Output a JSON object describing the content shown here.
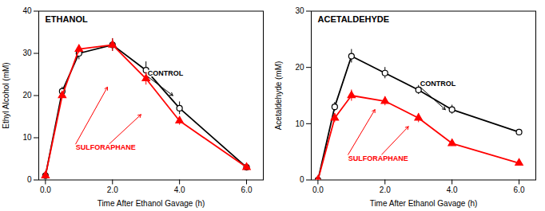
{
  "chart_data": [
    {
      "type": "line",
      "title": "ETHANOL",
      "xlabel": "Time After Ethanol Gavage (h)",
      "ylabel": "Ethyl Alcohol (mM)",
      "x": [
        0,
        0.5,
        1,
        2,
        3,
        4,
        6
      ],
      "xlim": [
        -0.2,
        6.5
      ],
      "xticks": [
        0,
        2,
        4,
        6
      ],
      "ylim": [
        0,
        40
      ],
      "yticks": [
        0,
        10,
        20,
        30,
        40
      ],
      "series": [
        {
          "name": "CONTROL",
          "color": "black",
          "marker": "circle-open",
          "values": [
            1,
            21,
            30,
            32,
            26,
            17,
            3
          ],
          "yerr": [
            0,
            1.0,
            1.5,
            1.5,
            2.0,
            1.5,
            0.5
          ],
          "label_at": [
            3.05,
            24.5
          ],
          "arrows": [
            {
              "from": [
                3.05,
                24.5
              ],
              "to": [
                3.8,
                20.0
              ]
            }
          ]
        },
        {
          "name": "SULFORAPHANE",
          "color": "red",
          "marker": "triangle",
          "values": [
            1,
            20,
            31,
            32,
            24,
            14,
            3
          ],
          "yerr": [
            0,
            0.5,
            1.0,
            1.5,
            1.5,
            1.0,
            0.5
          ],
          "label_at": [
            0.9,
            8.5
          ],
          "arrows": [
            {
              "from": [
                0.9,
                8.5
              ],
              "to": [
                1.85,
                22.0
              ]
            },
            {
              "from": [
                1.9,
                8.5
              ],
              "to": [
                2.85,
                15.5
              ]
            }
          ]
        }
      ]
    },
    {
      "type": "line",
      "title": "ACETALDEHYDE",
      "xlabel": "Time After Ethanol Gavage (h)",
      "ylabel": "Acetaldehyde (mM)",
      "x": [
        0,
        0.5,
        1,
        2,
        3,
        4,
        6
      ],
      "xlim": [
        -0.2,
        6.5
      ],
      "xticks": [
        0,
        2,
        4,
        6
      ],
      "ylim": [
        0,
        30
      ],
      "yticks": [
        0,
        10,
        20,
        30
      ],
      "series": [
        {
          "name": "CONTROL",
          "color": "black",
          "marker": "circle-open",
          "values": [
            0,
            13,
            22,
            19,
            16,
            12.5,
            8.5
          ],
          "yerr": [
            0,
            0.8,
            1.2,
            1.0,
            0.8,
            0.8,
            0.5
          ],
          "label_at": [
            3.05,
            16.5
          ],
          "arrows": [
            {
              "from": [
                3.05,
                16.5
              ],
              "to": [
                3.8,
                12.5
              ]
            }
          ]
        },
        {
          "name": "SULFORAPHANE",
          "color": "red",
          "marker": "triangle",
          "values": [
            0,
            11,
            15,
            14,
            11,
            6.5,
            3
          ],
          "yerr": [
            0,
            0.8,
            1.0,
            0.8,
            0.8,
            0.5,
            0.3
          ],
          "label_at": [
            0.9,
            4.5
          ],
          "arrows": [
            {
              "from": [
                0.9,
                4.5
              ],
              "to": [
                1.7,
                12.5
              ]
            },
            {
              "from": [
                1.9,
                4.5
              ],
              "to": [
                2.7,
                9.5
              ]
            }
          ]
        }
      ]
    }
  ]
}
